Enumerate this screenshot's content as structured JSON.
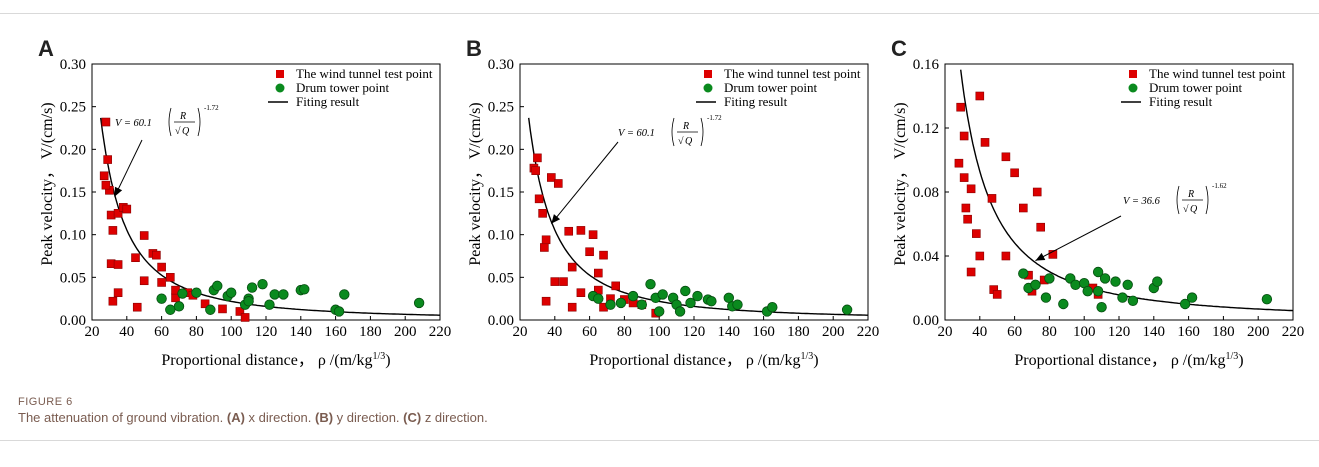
{
  "figure": {
    "label": "FIGURE 6",
    "caption": [
      {
        "text": "The attenuation of ground vibration. ",
        "bold": false
      },
      {
        "text": "(A)",
        "bold": true
      },
      {
        "text": " x direction. ",
        "bold": false
      },
      {
        "text": "(B)",
        "bold": true
      },
      {
        "text": " y direction. ",
        "bold": false
      },
      {
        "text": "(C)",
        "bold": true
      },
      {
        "text": " z direction.",
        "bold": false
      }
    ]
  },
  "colors": {
    "wind": "#dd0000",
    "drum": "#0a8a1e",
    "fit": "#000000",
    "axis": "#000000"
  },
  "chart_data": [
    {
      "panel": "A",
      "type": "scatter",
      "xlabel": "Proportional distance， ρ /(m/kg1/3)",
      "ylabel": "Peak velocity， V/(cm/s)",
      "xlim": [
        20,
        220
      ],
      "ylim": [
        0,
        0.3
      ],
      "xticks": [
        "20",
        "40",
        "60",
        "80",
        "100",
        "120",
        "140",
        "160",
        "180",
        "200",
        "220"
      ],
      "yticks": [
        "0.00",
        "0.05",
        "0.10",
        "0.15",
        "0.20",
        "0.25",
        "0.30"
      ],
      "legend": {
        "position": "top-right",
        "entries": [
          "The wind tunnel test point",
          "Drum tower point",
          "Fiting result"
        ]
      },
      "equation": {
        "prefix": "V = 60.1",
        "R": "R",
        "Q": "Q",
        "exp": "-1.72"
      },
      "fit": {
        "k": 60.1,
        "alpha": 1.72,
        "x_from": 25
      },
      "series": [
        {
          "name": "The wind tunnel test point",
          "marker": "square",
          "points": [
            [
              28,
              0.232
            ],
            [
              29,
              0.188
            ],
            [
              30,
              0.152
            ],
            [
              27,
              0.169
            ],
            [
              28,
              0.158
            ],
            [
              31,
              0.123
            ],
            [
              32,
              0.105
            ],
            [
              31,
              0.066
            ],
            [
              32,
              0.022
            ],
            [
              35,
              0.125
            ],
            [
              38,
              0.132
            ],
            [
              35,
              0.065
            ],
            [
              35,
              0.032
            ],
            [
              40,
              0.13
            ],
            [
              45,
              0.073
            ],
            [
              46,
              0.015
            ],
            [
              50,
              0.046
            ],
            [
              50,
              0.099
            ],
            [
              55,
              0.078
            ],
            [
              57,
              0.076
            ],
            [
              60,
              0.062
            ],
            [
              60,
              0.044
            ],
            [
              65,
              0.05
            ],
            [
              68,
              0.026
            ],
            [
              75,
              0.032
            ],
            [
              68,
              0.035
            ],
            [
              78,
              0.029
            ],
            [
              85,
              0.019
            ],
            [
              95,
              0.013
            ],
            [
              105,
              0.01
            ],
            [
              108,
              0.003
            ]
          ]
        },
        {
          "name": "Drum tower point",
          "marker": "circle",
          "points": [
            [
              60,
              0.025
            ],
            [
              65,
              0.012
            ],
            [
              70,
              0.016
            ],
            [
              72,
              0.031
            ],
            [
              80,
              0.032
            ],
            [
              88,
              0.012
            ],
            [
              90,
              0.035
            ],
            [
              92,
              0.04
            ],
            [
              98,
              0.028
            ],
            [
              100,
              0.032
            ],
            [
              108,
              0.018
            ],
            [
              110,
              0.025
            ],
            [
              110,
              0.022
            ],
            [
              112,
              0.038
            ],
            [
              118,
              0.042
            ],
            [
              122,
              0.018
            ],
            [
              125,
              0.03
            ],
            [
              130,
              0.03
            ],
            [
              140,
              0.035
            ],
            [
              142,
              0.036
            ],
            [
              160,
              0.012
            ],
            [
              162,
              0.01
            ],
            [
              165,
              0.03
            ],
            [
              208,
              0.02
            ]
          ]
        }
      ]
    },
    {
      "panel": "B",
      "type": "scatter",
      "xlabel": "Proportional distance， ρ /(m/kg1/3)",
      "ylabel": "Peak velocity， V/(cm/s)",
      "xlim": [
        20,
        220
      ],
      "ylim": [
        0,
        0.3
      ],
      "xticks": [
        "20",
        "40",
        "60",
        "80",
        "100",
        "120",
        "140",
        "160",
        "180",
        "200",
        "220"
      ],
      "yticks": [
        "0.00",
        "0.05",
        "0.10",
        "0.15",
        "0.20",
        "0.25",
        "0.30"
      ],
      "legend": {
        "position": "top-right",
        "entries": [
          "The wind tunnel test point",
          "Drum tower point",
          "Fiting result"
        ]
      },
      "equation": {
        "prefix": "V = 60.1",
        "R": "R",
        "Q": "Q",
        "exp": "-1.72"
      },
      "fit": {
        "k": 60.1,
        "alpha": 1.72,
        "x_from": 25
      },
      "series": [
        {
          "name": "The wind tunnel test point",
          "marker": "square",
          "points": [
            [
              28,
              0.178
            ],
            [
              30,
              0.19
            ],
            [
              29,
              0.175
            ],
            [
              31,
              0.142
            ],
            [
              33,
              0.125
            ],
            [
              34,
              0.085
            ],
            [
              35,
              0.094
            ],
            [
              35,
              0.022
            ],
            [
              38,
              0.167
            ],
            [
              40,
              0.045
            ],
            [
              42,
              0.16
            ],
            [
              45,
              0.045
            ],
            [
              48,
              0.104
            ],
            [
              50,
              0.062
            ],
            [
              50,
              0.015
            ],
            [
              55,
              0.105
            ],
            [
              55,
              0.032
            ],
            [
              60,
              0.08
            ],
            [
              62,
              0.1
            ],
            [
              65,
              0.055
            ],
            [
              65,
              0.035
            ],
            [
              68,
              0.076
            ],
            [
              68,
              0.015
            ],
            [
              72,
              0.025
            ],
            [
              75,
              0.04
            ],
            [
              80,
              0.024
            ],
            [
              85,
              0.02
            ],
            [
              90,
              0.018
            ],
            [
              98,
              0.008
            ]
          ]
        },
        {
          "name": "Drum tower point",
          "marker": "circle",
          "points": [
            [
              62,
              0.028
            ],
            [
              65,
              0.025
            ],
            [
              72,
              0.018
            ],
            [
              78,
              0.02
            ],
            [
              85,
              0.028
            ],
            [
              90,
              0.018
            ],
            [
              95,
              0.042
            ],
            [
              98,
              0.026
            ],
            [
              100,
              0.01
            ],
            [
              102,
              0.03
            ],
            [
              108,
              0.026
            ],
            [
              110,
              0.018
            ],
            [
              112,
              0.01
            ],
            [
              115,
              0.034
            ],
            [
              118,
              0.02
            ],
            [
              122,
              0.028
            ],
            [
              128,
              0.024
            ],
            [
              130,
              0.022
            ],
            [
              140,
              0.026
            ],
            [
              142,
              0.016
            ],
            [
              145,
              0.018
            ],
            [
              162,
              0.01
            ],
            [
              165,
              0.015
            ],
            [
              208,
              0.012
            ]
          ]
        }
      ]
    },
    {
      "panel": "C",
      "type": "scatter",
      "xlabel": "Proportional distance， ρ /(m/kg1/3)",
      "ylabel": "Peak velocity， V/(cm/s)",
      "xlim": [
        20,
        220
      ],
      "ylim": [
        0,
        0.16
      ],
      "xticks": [
        "20",
        "40",
        "60",
        "80",
        "100",
        "120",
        "140",
        "160",
        "180",
        "200",
        "220"
      ],
      "yticks": [
        "0.00",
        "0.04",
        "0.08",
        "0.12",
        "0.16"
      ],
      "legend": {
        "position": "top-right",
        "entries": [
          "The wind tunnel test point",
          "Drum tower point",
          "Fiting result"
        ]
      },
      "equation": {
        "prefix": "V = 36.6",
        "R": "R",
        "Q": "Q",
        "exp": "-1.62"
      },
      "fit": {
        "k": 36.6,
        "alpha": 1.62,
        "x_from": 28
      },
      "series": [
        {
          "name": "The wind tunnel test point",
          "marker": "square",
          "points": [
            [
              28,
              0.098
            ],
            [
              29,
              0.133
            ],
            [
              31,
              0.115
            ],
            [
              31,
              0.089
            ],
            [
              32,
              0.07
            ],
            [
              33,
              0.063
            ],
            [
              35,
              0.082
            ],
            [
              35,
              0.03
            ],
            [
              38,
              0.054
            ],
            [
              40,
              0.14
            ],
            [
              40,
              0.04
            ],
            [
              43,
              0.111
            ],
            [
              47,
              0.076
            ],
            [
              48,
              0.019
            ],
            [
              50,
              0.016
            ],
            [
              55,
              0.04
            ],
            [
              55,
              0.102
            ],
            [
              60,
              0.092
            ],
            [
              65,
              0.07
            ],
            [
              68,
              0.028
            ],
            [
              70,
              0.018
            ],
            [
              73,
              0.08
            ],
            [
              75,
              0.058
            ],
            [
              77,
              0.025
            ],
            [
              82,
              0.041
            ],
            [
              105,
              0.02
            ],
            [
              108,
              0.016
            ]
          ]
        },
        {
          "name": "Drum tower point",
          "marker": "circle",
          "points": [
            [
              65,
              0.029
            ],
            [
              68,
              0.02
            ],
            [
              72,
              0.022
            ],
            [
              78,
              0.014
            ],
            [
              80,
              0.026
            ],
            [
              88,
              0.01
            ],
            [
              92,
              0.026
            ],
            [
              95,
              0.022
            ],
            [
              100,
              0.023
            ],
            [
              102,
              0.018
            ],
            [
              108,
              0.03
            ],
            [
              108,
              0.018
            ],
            [
              110,
              0.008
            ],
            [
              112,
              0.026
            ],
            [
              118,
              0.024
            ],
            [
              122,
              0.014
            ],
            [
              125,
              0.022
            ],
            [
              128,
              0.012
            ],
            [
              140,
              0.02
            ],
            [
              142,
              0.024
            ],
            [
              158,
              0.01
            ],
            [
              162,
              0.014
            ],
            [
              205,
              0.013
            ]
          ]
        }
      ]
    }
  ]
}
